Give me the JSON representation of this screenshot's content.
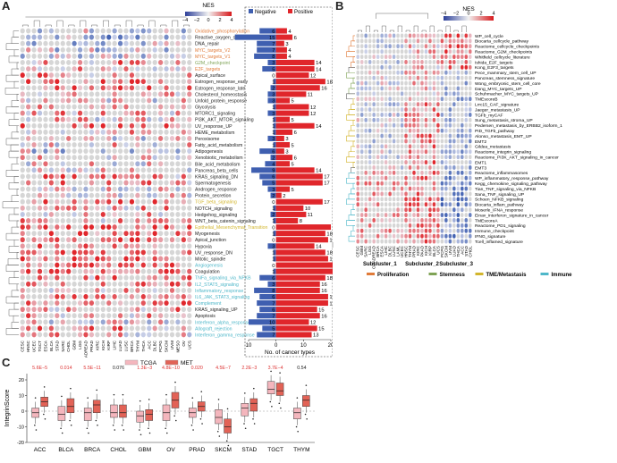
{
  "panel_labels": {
    "a": "A",
    "b": "B",
    "c": "C"
  },
  "colors": {
    "negative": "#3f5fb0",
    "positive": "#e0262b",
    "grey": "#d6d6d6",
    "tcga": "#f4b6bd",
    "met": "#e26256"
  },
  "panel_a": {
    "legend_title": "NES",
    "legend_ticks": [
      "−4",
      "−2",
      "0",
      "2",
      "4"
    ],
    "bar_legend": {
      "negative": "Negative",
      "positive": "Positive"
    },
    "bar_xlabel": "No. of cancer types",
    "bar_xticks": [
      "10",
      "0",
      "10",
      "20"
    ],
    "cancer_types": [
      "CESC",
      "HNSC",
      "UCEC",
      "TGCT",
      "ESCA",
      "BLCA",
      "STAD",
      "SARC",
      "CHOL",
      "GBM",
      "LGG",
      "COADREAD",
      "PRAD",
      "KIRC",
      "KICH",
      "KIRP",
      "LIHC",
      "LUAD",
      "LUSC",
      "BRCA",
      "THYM",
      "THCA",
      "ACC",
      "DLBC",
      "PCPG",
      "SKCM",
      "UVM",
      "MESO",
      "OV",
      "UCS"
    ],
    "pathways": [
      {
        "name": "Oxidative_phosphorylation",
        "neg": 6,
        "pos": 4,
        "group": "Proliferation"
      },
      {
        "name": "Reactive_oxygen_species_pathway",
        "neg": 15,
        "pos": 6,
        "group": "none"
      },
      {
        "name": "DNA_repair",
        "neg": 7,
        "pos": 3,
        "group": "none"
      },
      {
        "name": "MYC_targets_V2",
        "neg": 7,
        "pos": 4,
        "group": "Proliferation"
      },
      {
        "name": "MYC_targets_V1",
        "neg": 8,
        "pos": 4,
        "group": "Proliferation"
      },
      {
        "name": "G2M_checkpoint",
        "neg": 3,
        "pos": 14,
        "group": "Stemness"
      },
      {
        "name": "E2F_targets",
        "neg": 5,
        "pos": 14,
        "group": "Proliferation"
      },
      {
        "name": "Apical_surface",
        "neg": 0,
        "pos": 12,
        "group": "none"
      },
      {
        "name": "Estrogen_response_early",
        "neg": 1,
        "pos": 18,
        "group": "none"
      },
      {
        "name": "Estrogen_response_late",
        "neg": 2,
        "pos": 16,
        "group": "none"
      },
      {
        "name": "Cholesterol_homeostasis",
        "neg": 3,
        "pos": 11,
        "group": "none"
      },
      {
        "name": "Unfold_protein_response",
        "neg": 3,
        "pos": 5,
        "group": "none"
      },
      {
        "name": "Glycolysis",
        "neg": 1,
        "pos": 12,
        "group": "none"
      },
      {
        "name": "MTORC1_signaling",
        "neg": 3,
        "pos": 12,
        "group": "none"
      },
      {
        "name": "PI3K_AKT_MTOR_signaling",
        "neg": 1,
        "pos": 5,
        "group": "none"
      },
      {
        "name": "UV_response_UP",
        "neg": 1,
        "pos": 14,
        "group": "none"
      },
      {
        "name": "HEME_metabolism",
        "neg": 1,
        "pos": 6,
        "group": "none"
      },
      {
        "name": "Peroxisome",
        "neg": 3,
        "pos": 3,
        "group": "none"
      },
      {
        "name": "Fatty_acid_metabolism",
        "neg": 1,
        "pos": 5,
        "group": "none"
      },
      {
        "name": "Adipogenesis",
        "neg": 6,
        "pos": 3,
        "group": "none"
      },
      {
        "name": "Xenobiotic_metabolism",
        "neg": 2,
        "pos": 6,
        "group": "none"
      },
      {
        "name": "Bile_acid_metabolism",
        "neg": 4,
        "pos": 5,
        "group": "none"
      },
      {
        "name": "Pancreas_beta_cells",
        "neg": 9,
        "pos": 14,
        "group": "none"
      },
      {
        "name": "KRAS_signaling_DN",
        "neg": 6,
        "pos": 17,
        "group": "none"
      },
      {
        "name": "Spermatogenesis",
        "neg": 5,
        "pos": 17,
        "group": "none"
      },
      {
        "name": "Androgen_response",
        "neg": 3,
        "pos": 5,
        "group": "none"
      },
      {
        "name": "Protein_secretion",
        "neg": 2,
        "pos": 2,
        "group": "none"
      },
      {
        "name": "TGF_beta_signaling",
        "neg": 0,
        "pos": 17,
        "group": "TME/Metastasis"
      },
      {
        "name": "NOTCH_signaling",
        "neg": 1,
        "pos": 10,
        "group": "none"
      },
      {
        "name": "Hedgehog_signaling",
        "neg": 2,
        "pos": 11,
        "group": "none"
      },
      {
        "name": "WNT_beta_catenin_signaling",
        "neg": 1,
        "pos": 8,
        "group": "none"
      },
      {
        "name": "Epithelial_Mesenchymal_Transition",
        "neg": 0,
        "pos": 20,
        "group": "TME/Metastasis"
      },
      {
        "name": "Myogenesis",
        "neg": 1,
        "pos": 18,
        "group": "none"
      },
      {
        "name": "Apical_junction",
        "neg": 0,
        "pos": 19,
        "group": "none"
      },
      {
        "name": "Hypoxia",
        "neg": 3,
        "pos": 14,
        "group": "none"
      },
      {
        "name": "UV_response_DN",
        "neg": 1,
        "pos": 18,
        "group": "none"
      },
      {
        "name": "Mitotic_spindle",
        "neg": 1,
        "pos": 19,
        "group": "none"
      },
      {
        "name": "Angiogenesis",
        "neg": 0,
        "pos": 21,
        "group": "Immune"
      },
      {
        "name": "Coagulation",
        "neg": 1,
        "pos": 21,
        "group": "none"
      },
      {
        "name": "TNFa_signaling_via_NFKB",
        "neg": 6,
        "pos": 18,
        "group": "Immune"
      },
      {
        "name": "IL2_STAT5_signaling",
        "neg": 3,
        "pos": 16,
        "group": "Immune"
      },
      {
        "name": "Inflammatory_response",
        "neg": 8,
        "pos": 16,
        "group": "Immune"
      },
      {
        "name": "IL6_JAK_STAT3_signaling",
        "neg": 6,
        "pos": 19,
        "group": "Immune"
      },
      {
        "name": "Complement",
        "neg": 7,
        "pos": 19,
        "group": "Immune"
      },
      {
        "name": "KRAS_signaling_UP",
        "neg": 6,
        "pos": 15,
        "group": "none"
      },
      {
        "name": "Apoptosis",
        "neg": 7,
        "pos": 16,
        "group": "none"
      },
      {
        "name": "Interferon_alpha_response",
        "neg": 10,
        "pos": 12,
        "group": "Immune"
      },
      {
        "name": "Allograft_rejection",
        "neg": 5,
        "pos": 15,
        "group": "Immune"
      },
      {
        "name": "Interferon_gamma_response",
        "neg": 7,
        "pos": 13,
        "group": "Immune"
      }
    ]
  },
  "panel_b": {
    "legend_title": "NES",
    "legend_ticks": [
      "−4",
      "−2",
      "0",
      "2",
      "4"
    ],
    "cancer_types": [
      "CESC",
      "GBM",
      "SARC",
      "LGG",
      "COADREAD",
      "BRCA",
      "ESCA",
      "LIHC",
      "DLBC",
      "LUSC",
      "LAML",
      "UCEC",
      "HNSC",
      "THYM",
      "PRAD",
      "KIRC",
      "PAAD",
      "KICH",
      "KIRP",
      "BLCA",
      "UCS",
      "PCPG",
      "SKCM",
      "UVM",
      "LUAD",
      "THCA",
      "ACC",
      "STAD",
      "CHOL"
    ],
    "subclusters": [
      "Subcluster_1",
      "Subcluster_2",
      "Subcluster_3"
    ],
    "groups": [
      {
        "name": "Proliferation",
        "color": "#e07b39"
      },
      {
        "name": "Stemness",
        "color": "#7fa356"
      },
      {
        "name": "TME/Metastasis",
        "color": "#d2b52c"
      },
      {
        "name": "Immune",
        "color": "#4fb7c9"
      }
    ],
    "signatures": [
      {
        "name": "WP_cell_cycle",
        "group": "Proliferation"
      },
      {
        "name": "Biocarta_cellcycle_pathway",
        "group": "Proliferation"
      },
      {
        "name": "Reactome_cellcycle_checkpoints",
        "group": "Proliferation"
      },
      {
        "name": "Reactome_G2M_checkpoints",
        "group": "Proliferation"
      },
      {
        "name": "Whitfield_cellcycle_literature",
        "group": "Proliferation"
      },
      {
        "name": "Ishida_E2F_targets",
        "group": "Proliferation"
      },
      {
        "name": "Kong_E2F3_targets",
        "group": "Proliferation"
      },
      {
        "name": "Pece_mammary_stem_cell_UP",
        "group": "Stemness"
      },
      {
        "name": "Pancreas_stemness_signature",
        "group": "Stemness"
      },
      {
        "name": "Wong_embryonic_stem_cell_core",
        "group": "Stemness"
      },
      {
        "name": "Dang_MYC_targets_UP",
        "group": "Stemness"
      },
      {
        "name": "Schuhmacher_MYC_targets_UP",
        "group": "Stemness"
      },
      {
        "name": "TMEscoreB",
        "group": "TME/Metastasis"
      },
      {
        "name": "Lrrc15_CAF_signature",
        "group": "TME/Metastasis"
      },
      {
        "name": "Jaeger_metastasis_UP",
        "group": "TME/Metastasis"
      },
      {
        "name": "TGFb_myCAF",
        "group": "TME/Metastasis"
      },
      {
        "name": "Sung_metastasis_stroma_UP",
        "group": "TME/Metastasis"
      },
      {
        "name": "Pedersen_metastasis_by_ERBB2_isoform_1",
        "group": "TME/Metastasis"
      },
      {
        "name": "PID_TGFb_pathway",
        "group": "TME/Metastasis"
      },
      {
        "name": "Alonso_metastasis_EMT_UP",
        "group": "TME/Metastasis"
      },
      {
        "name": "EMT2",
        "group": "TME/Metastasis"
      },
      {
        "name": "Gildea_metastasis",
        "group": "TME/Metastasis"
      },
      {
        "name": "Reactome_integrin_signaling",
        "group": "TME/Metastasis"
      },
      {
        "name": "Reactome_PI3K_AKT_signaling_in_cancer",
        "group": "TME/Metastasis"
      },
      {
        "name": "EMT1",
        "group": "TME/Metastasis"
      },
      {
        "name": "EMT3",
        "group": "TME/Metastasis"
      },
      {
        "name": "Reactome_inflammasomes",
        "group": "Immune"
      },
      {
        "name": "WP_inflammatory_response_pathway",
        "group": "Immune"
      },
      {
        "name": "Kegg_chemokine_signaling_pathway",
        "group": "Immune"
      },
      {
        "name": "Tian_TNF_signaling_via_NFKB",
        "group": "Immune"
      },
      {
        "name": "Sana_TNF_signaling_UP",
        "group": "Immune"
      },
      {
        "name": "Schoen_NFKB_signaling",
        "group": "Immune"
      },
      {
        "name": "Biocarta_inflam_pathway",
        "group": "Immune"
      },
      {
        "name": "Moserle_IFNA_response",
        "group": "Immune"
      },
      {
        "name": "Einav_interferon_signature_in_cancer",
        "group": "Immune"
      },
      {
        "name": "TMEscoreA",
        "group": "Immune"
      },
      {
        "name": "Reactome_PD1_signaling",
        "group": "Immune"
      },
      {
        "name": "Immune_checkpoint",
        "group": "Immune"
      },
      {
        "name": "IFNG_signature",
        "group": "Immune"
      },
      {
        "name": "Tcell_inflamed_signature",
        "group": "Immune"
      }
    ]
  },
  "panel_c": {
    "legend": {
      "tcga": "TCGA",
      "met": "MET"
    },
    "ylabel": "IntegrinScore",
    "yticks": [
      "-20",
      "-10",
      "0",
      "10",
      "20"
    ],
    "chart_data": {
      "type": "box",
      "ylabel": "IntegrinScore",
      "ylim": [
        -20,
        24
      ],
      "categories": [
        "ACC",
        "BLCA",
        "BRCA",
        "CHOL",
        "GBM",
        "OV",
        "PRAD",
        "SKCM",
        "STAD",
        "TGCT",
        "THYM"
      ],
      "pvalues": [
        "5.6E−5",
        "0.014",
        "5.5E−11",
        "0.076",
        "1.3E−3",
        "4.8E−10",
        "0.020",
        "4.5E−7",
        "2.2E−3",
        "3.7E−4",
        "0.54"
      ],
      "series": [
        {
          "name": "TCGA",
          "medians": [
            -1,
            -2,
            -1,
            -1,
            -3,
            -1,
            -1,
            -4,
            2,
            14,
            -1
          ]
        },
        {
          "name": "MET",
          "medians": [
            6,
            3,
            4,
            -1,
            -2,
            7,
            3,
            -10,
            5,
            13,
            7
          ]
        }
      ]
    }
  }
}
